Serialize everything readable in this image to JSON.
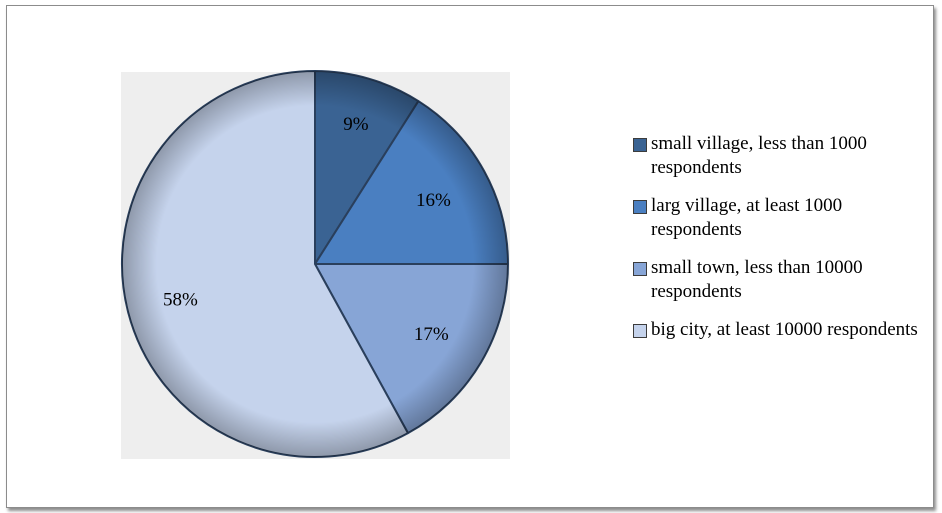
{
  "chart_data": {
    "type": "pie",
    "title": "",
    "slices": [
      {
        "name": "small village, less than 1000 respondents",
        "value": 9,
        "label": "9%",
        "color": "#3a6393"
      },
      {
        "name": "larg village, at least 1000 respondents",
        "value": 16,
        "label": "16%",
        "color": "#4a7fc1"
      },
      {
        "name": "small town, less than 10000 respondents",
        "value": 17,
        "label": "17%",
        "color": "#87a5d6"
      },
      {
        "name": "big city, at least 10000 respondents",
        "value": 58,
        "label": "58%",
        "color": "#c5d3ec"
      }
    ],
    "legend_position": "right"
  }
}
